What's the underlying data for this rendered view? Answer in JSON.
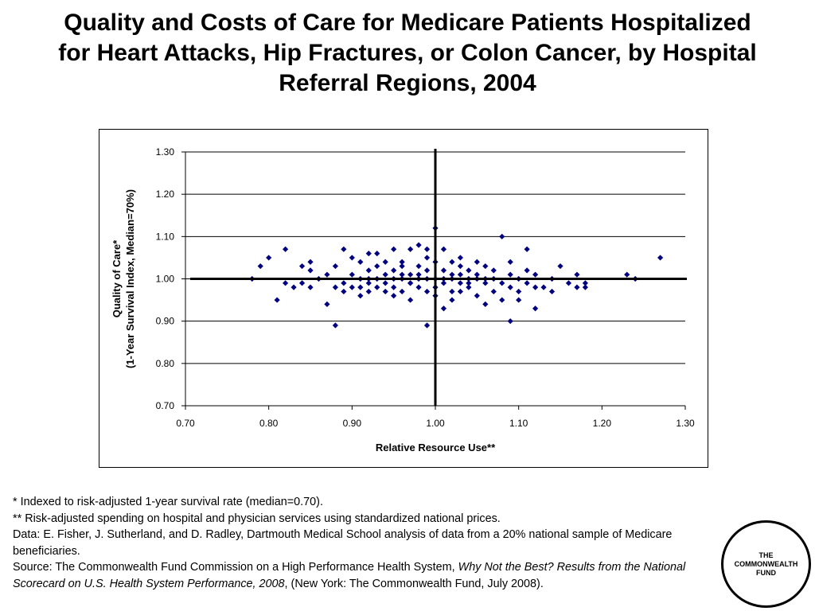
{
  "title_lines": [
    "Quality and Costs of Care for Medicare Patients Hospitalized",
    "for Heart Attacks, Hip Fractures, or Colon Cancer, by Hospital",
    "Referral Regions, 2004"
  ],
  "notes": {
    "line1": "* Indexed to risk-adjusted 1-year survival rate (median=0.70).",
    "line2": "** Risk-adjusted spending on hospital and physician services using standardized national prices.",
    "line3": "Data: E. Fisher, J. Sutherland, and D. Radley, Dartmouth Medical School analysis of data from a 20% national sample of Medicare beneficiaries.",
    "source_prefix": "Source: The Commonwealth Fund Commission on a High Performance Health System, ",
    "source_title": "Why Not the Best? Results from the National Scorecard on U.S. Health System Performance, 2008",
    "source_suffix": ", (New York: The Commonwealth Fund, July 2008)."
  },
  "logo_lines": [
    "THE",
    "COMMONWEALTH",
    "FUND"
  ],
  "chart_data": {
    "type": "scatter",
    "title": "",
    "xlabel": "Relative Resource Use**",
    "ylabel_lines": [
      "Quality of Care*",
      "(1-Year Survival Index, Median=70%)"
    ],
    "xlim": [
      0.7,
      1.3
    ],
    "ylim": [
      0.7,
      1.3
    ],
    "xticks": [
      "0.70",
      "0.80",
      "0.90",
      "1.00",
      "1.10",
      "1.20",
      "1.30"
    ],
    "yticks": [
      "1.30",
      "1.20",
      "1.10",
      "1.00",
      "0.90",
      "0.80",
      "0.70"
    ],
    "grid": "horizontal",
    "reference_lines": {
      "x": 1.0,
      "y": 1.0
    },
    "marker": "diamond",
    "color": "#000080",
    "points": [
      [
        0.78,
        1.0
      ],
      [
        0.79,
        1.03
      ],
      [
        0.8,
        1.05
      ],
      [
        0.81,
        0.95
      ],
      [
        0.82,
        1.07
      ],
      [
        0.82,
        0.99
      ],
      [
        0.83,
        0.98
      ],
      [
        0.84,
        1.03
      ],
      [
        0.84,
        0.99
      ],
      [
        0.85,
        1.02
      ],
      [
        0.85,
        0.98
      ],
      [
        0.85,
        1.04
      ],
      [
        0.86,
        1.0
      ],
      [
        0.87,
        1.01
      ],
      [
        0.87,
        0.94
      ],
      [
        0.88,
        0.89
      ],
      [
        0.88,
        0.98
      ],
      [
        0.88,
        1.03
      ],
      [
        0.89,
        1.07
      ],
      [
        0.89,
        0.99
      ],
      [
        0.89,
        0.97
      ],
      [
        0.9,
        1.01
      ],
      [
        0.9,
        1.05
      ],
      [
        0.9,
        0.98
      ],
      [
        0.91,
        1.04
      ],
      [
        0.91,
        0.96
      ],
      [
        0.91,
        1.0
      ],
      [
        0.92,
        0.97
      ],
      [
        0.92,
        1.02
      ],
      [
        0.92,
        1.06
      ],
      [
        0.92,
        0.99
      ],
      [
        0.93,
        1.03
      ],
      [
        0.93,
        0.98
      ],
      [
        0.93,
        1.06
      ],
      [
        0.93,
        1.0
      ],
      [
        0.94,
        0.97
      ],
      [
        0.94,
        1.04
      ],
      [
        0.94,
        1.01
      ],
      [
        0.94,
        0.99
      ],
      [
        0.95,
        1.07
      ],
      [
        0.95,
        0.96
      ],
      [
        0.95,
        1.02
      ],
      [
        0.95,
        0.98
      ],
      [
        0.96,
        1.04
      ],
      [
        0.96,
        1.0
      ],
      [
        0.96,
        0.97
      ],
      [
        0.96,
        1.03
      ],
      [
        0.97,
        0.99
      ],
      [
        0.97,
        1.07
      ],
      [
        0.97,
        1.01
      ],
      [
        0.97,
        0.95
      ],
      [
        0.98,
        1.08
      ],
      [
        0.98,
        1.03
      ],
      [
        0.98,
        0.98
      ],
      [
        0.98,
        1.0
      ],
      [
        0.99,
        0.89
      ],
      [
        0.99,
        1.05
      ],
      [
        0.99,
        0.97
      ],
      [
        0.99,
        1.02
      ],
      [
        0.99,
        1.07
      ],
      [
        1.0,
        1.12
      ],
      [
        1.0,
        1.0
      ],
      [
        1.0,
        0.96
      ],
      [
        1.0,
        1.04
      ],
      [
        1.0,
        0.98
      ],
      [
        1.01,
        1.02
      ],
      [
        1.01,
        0.99
      ],
      [
        1.01,
        1.07
      ],
      [
        1.01,
        0.93
      ],
      [
        1.02,
        1.01
      ],
      [
        1.02,
        0.97
      ],
      [
        1.02,
        1.04
      ],
      [
        1.02,
        0.95
      ],
      [
        1.03,
        1.03
      ],
      [
        1.03,
        0.99
      ],
      [
        1.03,
        1.05
      ],
      [
        1.03,
        0.97
      ],
      [
        1.04,
        1.0
      ],
      [
        1.04,
        1.02
      ],
      [
        1.04,
        0.98
      ],
      [
        1.05,
        1.04
      ],
      [
        1.05,
        0.96
      ],
      [
        1.05,
        1.01
      ],
      [
        1.06,
        0.99
      ],
      [
        1.06,
        0.94
      ],
      [
        1.06,
        1.03
      ],
      [
        1.07,
        1.0
      ],
      [
        1.07,
        0.97
      ],
      [
        1.07,
        1.02
      ],
      [
        1.08,
        1.1
      ],
      [
        1.08,
        0.95
      ],
      [
        1.08,
        0.99
      ],
      [
        1.09,
        1.04
      ],
      [
        1.09,
        0.98
      ],
      [
        1.09,
        1.01
      ],
      [
        1.09,
        0.9
      ],
      [
        1.1,
        0.97
      ],
      [
        1.1,
        1.0
      ],
      [
        1.1,
        0.95
      ],
      [
        1.11,
        1.02
      ],
      [
        1.11,
        1.07
      ],
      [
        1.11,
        0.99
      ],
      [
        1.12,
        0.98
      ],
      [
        1.12,
        1.01
      ],
      [
        1.12,
        0.93
      ],
      [
        1.13,
        0.98
      ],
      [
        1.14,
        1.0
      ],
      [
        1.14,
        0.97
      ],
      [
        1.15,
        1.03
      ],
      [
        1.16,
        0.99
      ],
      [
        1.17,
        1.01
      ],
      [
        1.17,
        0.98
      ],
      [
        1.18,
        0.98
      ],
      [
        1.18,
        0.99
      ],
      [
        1.23,
        1.01
      ],
      [
        1.24,
        1.0
      ],
      [
        1.27,
        1.05
      ],
      [
        0.91,
        0.98
      ],
      [
        0.95,
        1.0
      ],
      [
        0.97,
        0.99
      ],
      [
        0.98,
        1.01
      ],
      [
        0.99,
        1.0
      ],
      [
        1.01,
        1.0
      ],
      [
        1.02,
        1.0
      ],
      [
        1.03,
        1.01
      ],
      [
        1.04,
        0.99
      ],
      [
        1.05,
        1.0
      ],
      [
        1.06,
        1.0
      ],
      [
        0.92,
        1.0
      ],
      [
        0.96,
        1.01
      ]
    ]
  }
}
